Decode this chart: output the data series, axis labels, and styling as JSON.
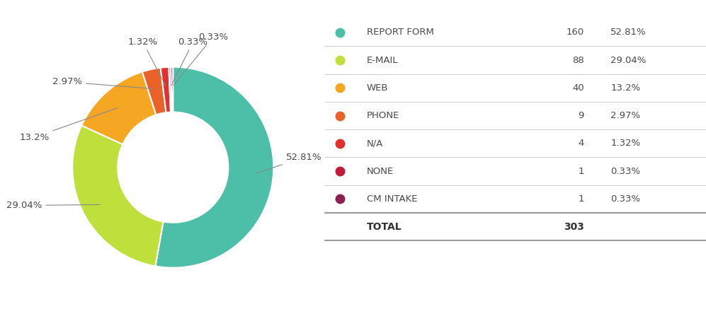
{
  "labels": [
    "REPORT FORM",
    "E-MAIL",
    "WEB",
    "PHONE",
    "N/A",
    "NONE",
    "CM INTAKE"
  ],
  "values": [
    160,
    88,
    40,
    9,
    4,
    1,
    1
  ],
  "percentages": [
    "52.81%",
    "29.04%",
    "13.2%",
    "2.97%",
    "1.32%",
    "0.33%",
    "0.33%"
  ],
  "colors": [
    "#4DBFA8",
    "#BFDF3C",
    "#F5A623",
    "#E8622A",
    "#E03030",
    "#C0193A",
    "#8B2252"
  ],
  "counts": [
    160,
    88,
    40,
    9,
    4,
    1,
    1
  ],
  "total": 303,
  "background_color": "#ffffff",
  "label_color": "#4a4a4a",
  "legend_label_color": "#4a4a4a",
  "figure_width": 9.97,
  "figure_height": 4.54,
  "dpi": 100
}
